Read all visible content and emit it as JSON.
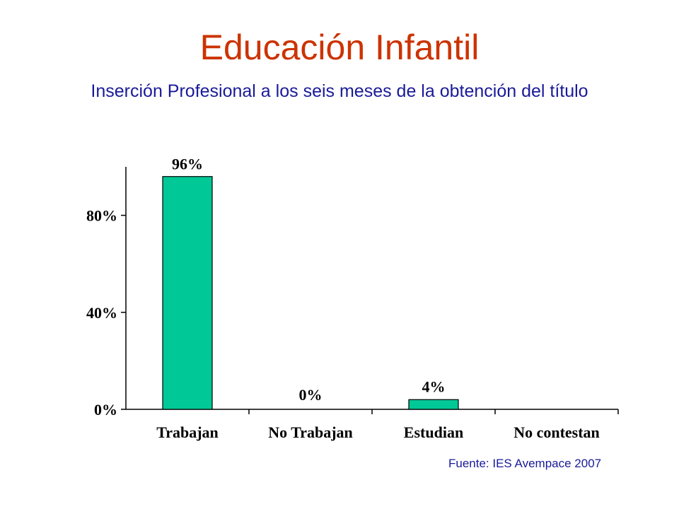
{
  "title": "Educación Infantil",
  "subtitle": "Inserción Profesional a los seis meses de la obtención del título",
  "source": "Fuente: IES Avempace 2007",
  "colors": {
    "title": "#cc3300",
    "subtitle": "#1a1a99",
    "source": "#1a1a99",
    "bar": "#00c896",
    "axis": "#000000"
  },
  "chart_data": {
    "type": "bar",
    "categories": [
      "Trabajan",
      "No Trabajan",
      "Estudian",
      "No contestan"
    ],
    "values": [
      96,
      0,
      4,
      null
    ],
    "data_labels": [
      "96%",
      "0%",
      "4%",
      ""
    ],
    "ylim": [
      0,
      100
    ],
    "yticks": [
      0,
      40,
      80
    ],
    "ytick_labels": [
      "0%",
      "40%",
      "80%"
    ],
    "xlabel": "",
    "ylabel": "",
    "grid": false,
    "legend": "none"
  }
}
